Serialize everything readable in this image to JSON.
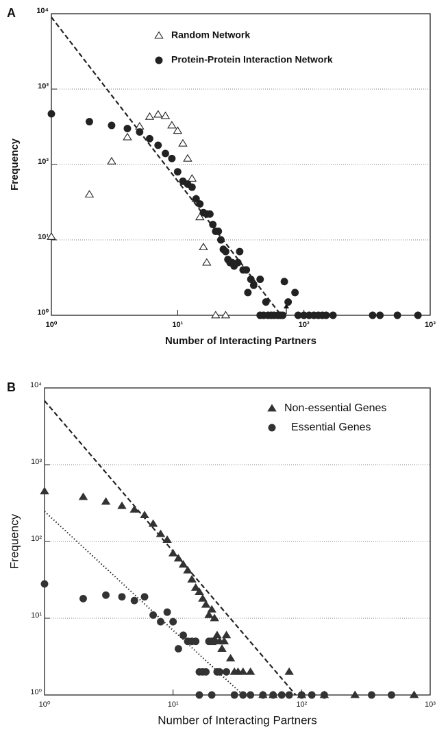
{
  "chart_data": [
    {
      "type": "scatter",
      "panel_label": "A",
      "xlabel": "Number of Interacting Partners",
      "ylabel": "Frequency",
      "log_x": true,
      "log_y": true,
      "grid": true,
      "xlim": [
        1,
        1000
      ],
      "ylim": [
        1,
        10000
      ],
      "xticks": [
        {
          "value": 1,
          "label": "10⁰"
        },
        {
          "value": 10,
          "label": "10¹"
        },
        {
          "value": 100,
          "label": "10²"
        },
        {
          "value": 1000,
          "label": "10³"
        }
      ],
      "yticks": [
        {
          "value": 1,
          "label": "10⁰"
        },
        {
          "value": 10,
          "label": "10¹"
        },
        {
          "value": 100,
          "label": "10²"
        },
        {
          "value": 1000,
          "label": "10³"
        },
        {
          "value": 10000,
          "label": "10⁴"
        }
      ],
      "series": [
        {
          "name": "Random Network",
          "marker": "triangle",
          "filled": false,
          "color": "#222222",
          "x": [
            1,
            2,
            3,
            4,
            5,
            6,
            7,
            8,
            9,
            10,
            11,
            12,
            13,
            14,
            15,
            16,
            17,
            20,
            24
          ],
          "values": [
            11,
            40,
            110,
            230,
            320,
            430,
            460,
            440,
            330,
            280,
            190,
            120,
            65,
            35,
            20,
            8,
            5,
            1,
            1
          ]
        },
        {
          "name": "Protein-Protein Interaction Network",
          "marker": "circle",
          "filled": true,
          "color": "#222222",
          "x": [
            1,
            2,
            3,
            4,
            5,
            6,
            7,
            8,
            9,
            10,
            11,
            12,
            13,
            14,
            15,
            16,
            17,
            18,
            19,
            20,
            21,
            22,
            23,
            24,
            25,
            26,
            27,
            28,
            30,
            31,
            33,
            35,
            36,
            38,
            40,
            45,
            50,
            70,
            75,
            85,
            45,
            48,
            52,
            55,
            58,
            62,
            65,
            68,
            90,
            100,
            110,
            120,
            130,
            140,
            150,
            170,
            350,
            400,
            550,
            800
          ],
          "values": [
            470,
            370,
            330,
            300,
            270,
            220,
            180,
            140,
            120,
            80,
            60,
            55,
            50,
            35,
            30,
            23,
            22,
            22,
            16,
            13,
            13,
            10,
            7.5,
            7,
            5.5,
            5,
            5,
            4.5,
            5,
            7,
            4,
            4,
            2,
            3,
            2.5,
            3,
            1.5,
            2.8,
            1.5,
            2,
            1,
            1,
            1,
            1,
            1,
            1,
            1,
            1,
            1,
            1,
            1,
            1,
            1,
            1,
            1,
            1,
            1,
            1,
            1,
            1
          ]
        }
      ],
      "lines": [
        {
          "style": "dashed",
          "x": [
            1,
            66
          ],
          "y": [
            9000,
            1
          ]
        }
      ]
    },
    {
      "type": "scatter",
      "panel_label": "B",
      "xlabel": "Number of Interacting Partners",
      "ylabel": "Frequency",
      "log_x": true,
      "log_y": true,
      "grid": true,
      "xlim": [
        1,
        1000
      ],
      "ylim": [
        1,
        10000
      ],
      "xticks": [
        {
          "value": 1,
          "label": "10⁰"
        },
        {
          "value": 10,
          "label": "10¹"
        },
        {
          "value": 100,
          "label": "10²"
        },
        {
          "value": 1000,
          "label": "10³"
        }
      ],
      "yticks": [
        {
          "value": 1,
          "label": "10⁰"
        },
        {
          "value": 10,
          "label": "10¹"
        },
        {
          "value": 100,
          "label": "10²"
        },
        {
          "value": 1000,
          "label": "10³"
        },
        {
          "value": 10000,
          "label": "10⁴"
        }
      ],
      "series": [
        {
          "name": "Non-essential Genes",
          "marker": "triangle",
          "filled": true,
          "color": "#333333",
          "x": [
            1,
            2,
            3,
            4,
            5,
            6,
            7,
            8,
            9,
            10,
            11,
            12,
            13,
            14,
            15,
            16,
            17,
            18,
            19,
            20,
            21,
            22,
            23,
            24,
            25,
            26,
            28,
            30,
            32,
            35,
            40,
            50,
            60,
            80,
            100,
            150,
            260,
            750
          ],
          "values": [
            450,
            380,
            330,
            290,
            260,
            220,
            170,
            125,
            105,
            70,
            60,
            50,
            42,
            32,
            25,
            22,
            18,
            15,
            11,
            13,
            10,
            6,
            5,
            4,
            5,
            6,
            3,
            2,
            2,
            2,
            2,
            1,
            1,
            2,
            1,
            1,
            1,
            1
          ]
        },
        {
          "name": "Essential Genes",
          "marker": "circle",
          "filled": true,
          "color": "#333333",
          "x": [
            1,
            2,
            3,
            4,
            5,
            6,
            7,
            8,
            9,
            10,
            11,
            12,
            13,
            14,
            15,
            16,
            17,
            18,
            19,
            20,
            21,
            22,
            23,
            26,
            16,
            20,
            30,
            35,
            40,
            50,
            60,
            70,
            80,
            100,
            120,
            150,
            350,
            500
          ],
          "values": [
            28,
            18,
            20,
            19,
            17,
            19,
            11,
            9,
            12,
            9,
            4,
            6,
            5,
            5,
            5,
            2,
            2,
            2,
            5,
            5,
            5,
            2,
            2,
            2,
            1,
            1,
            1,
            1,
            1,
            1,
            1,
            1,
            1,
            1,
            1,
            1,
            1,
            1
          ]
        }
      ],
      "lines": [
        {
          "style": "dashed",
          "x": [
            1,
            90
          ],
          "y": [
            6800,
            1
          ]
        },
        {
          "style": "dotted",
          "x": [
            1,
            35
          ],
          "y": [
            246,
            1
          ]
        }
      ]
    }
  ]
}
